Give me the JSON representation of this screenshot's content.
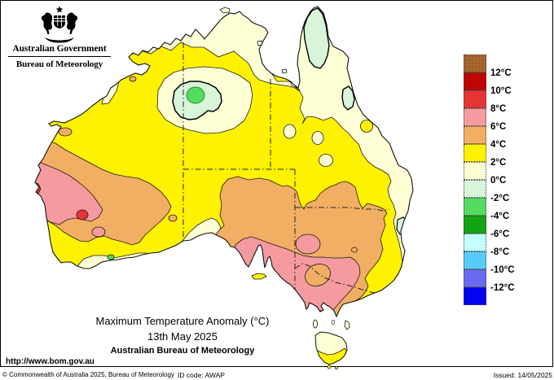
{
  "header": {
    "government": "Australian Government",
    "agency": "Bureau of Meteorology"
  },
  "palette": {
    "brown": "#A8682F",
    "dark_red": "#C00404",
    "red": "#E53434",
    "pink": "#F59A9E",
    "orange": "#F2AE62",
    "yellow": "#FFF200",
    "cream": "#FFFFD6",
    "pale_green": "#D8F5DA",
    "light_green": "#55DC60",
    "green": "#12A412",
    "pale_cyan": "#C4FFFF",
    "cyan": "#58CCF8",
    "blue_violet": "#6A6AF0",
    "blue": "#0404EE"
  },
  "legend": {
    "keys": [
      "brown",
      "dark_red",
      "red",
      "pink",
      "orange",
      "yellow",
      "cream",
      "pale_green",
      "light_green",
      "green",
      "pale_cyan",
      "cyan",
      "blue_violet",
      "blue"
    ],
    "labels": [
      "12°C",
      "10°C",
      "8°C",
      "6°C",
      "4°C",
      "2°C",
      "0°C",
      "-2°C",
      "-4°C",
      "-6°C",
      "-8°C",
      "-10°C",
      "-12°C"
    ]
  },
  "map": {
    "title": "Maximum Temperature Anomaly (°C)",
    "date": "13th May 2025",
    "source": "Australian Bureau of Meteorology"
  },
  "footer": {
    "url": "http://www.bom.gov.au",
    "copyright": "© Commonwealth of Australia 2025, Bureau of Meteorology",
    "id_code": "ID code: AWAP",
    "issued": "Issued: 14/05/2025"
  }
}
